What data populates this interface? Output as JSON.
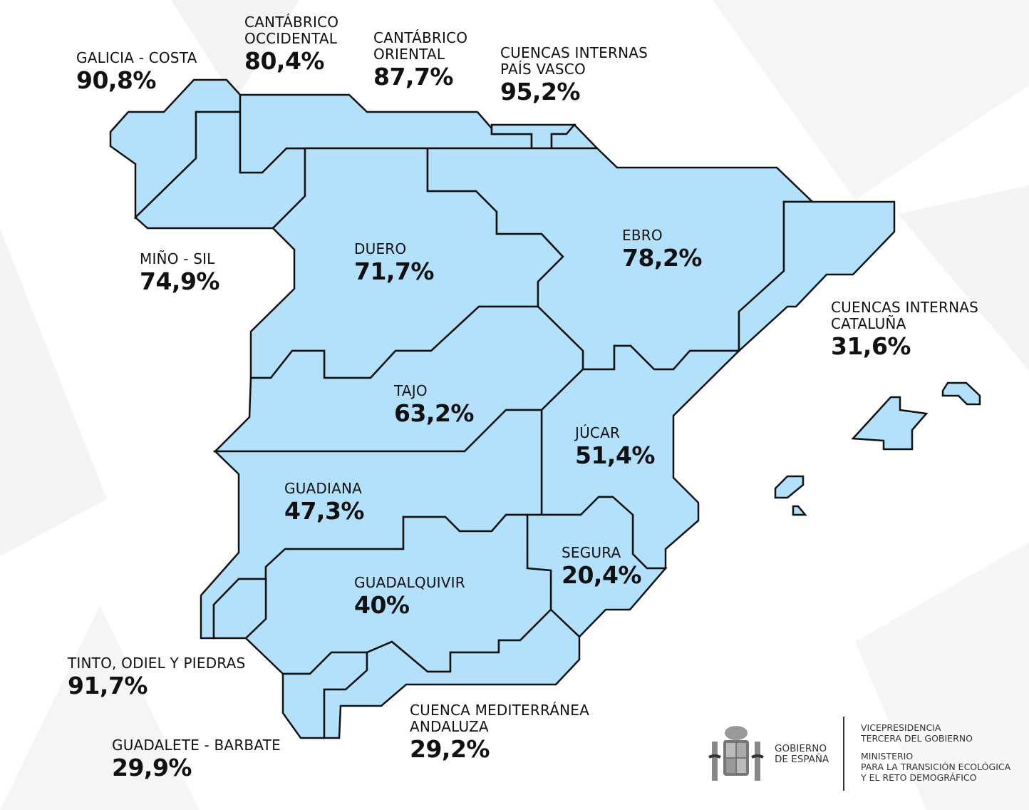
{
  "colors": {
    "basin_fill": "#b3e0fb",
    "outline": "#111111",
    "text": "#111111"
  },
  "basins": [
    {
      "name": "GALICIA - COSTA",
      "value": "90,8%"
    },
    {
      "name": "CANTÁBRICO OCCIDENTAL",
      "line1": "CANTÁBRICO",
      "line2": "OCCIDENTAL",
      "value": "80,4%"
    },
    {
      "name": "CANTÁBRICO ORIENTAL",
      "line1": "CANTÁBRICO",
      "line2": "ORIENTAL",
      "value": "87,7%"
    },
    {
      "name": "CUENCAS INTERNAS PAÍS VASCO",
      "line1": "CUENCAS INTERNAS",
      "line2": "PAÍS VASCO",
      "value": "95,2%"
    },
    {
      "name": "MIÑO - SIL",
      "value": "74,9%"
    },
    {
      "name": "DUERO",
      "value": "71,7%"
    },
    {
      "name": "EBRO",
      "value": "78,2%"
    },
    {
      "name": "CUENCAS INTERNAS CATALUÑA",
      "line1": "CUENCAS INTERNAS",
      "line2": "CATALUÑA",
      "value": "31,6%"
    },
    {
      "name": "TAJO",
      "value": "63,2%"
    },
    {
      "name": "JÚCAR",
      "value": "51,4%"
    },
    {
      "name": "GUADIANA",
      "value": "47,3%"
    },
    {
      "name": "SEGURA",
      "value": "20,4%"
    },
    {
      "name": "GUADALQUIVIR",
      "value": "40%"
    },
    {
      "name": "TINTO, ODIEL Y PIEDRAS",
      "value": "91,7%"
    },
    {
      "name": "CUENCA MEDITERRÁNEA ANDALUZA",
      "line1": "CUENCA MEDITERRÁNEA",
      "line2": "ANDALUZA",
      "value": "29,2%"
    },
    {
      "name": "GUADALETE - BARBATE",
      "value": "29,9%"
    }
  ],
  "footer": {
    "gobierno_line1": "GOBIERNO",
    "gobierno_line2": "DE ESPAÑA",
    "vice_line1": "VICEPRESIDENCIA",
    "vice_line2": "TERCERA DEL GOBIERNO",
    "min_line1": "MINISTERIO",
    "min_line2": "PARA LA TRANSICIÓN ECOLÓGICA",
    "min_line3": "Y EL RETO DEMOGRÁFICO",
    "icon": "coat-of-arms-icon"
  }
}
